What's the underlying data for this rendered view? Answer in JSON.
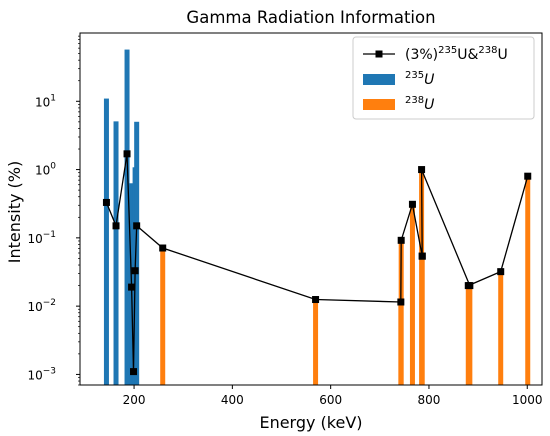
{
  "chart_data": {
    "type": "bar+line",
    "title": "Gamma Radiation Information",
    "xlabel": "Energy (keV)",
    "ylabel": "Intensity (%)",
    "xlim": [
      90,
      1030
    ],
    "ylim": [
      0.0007,
      100
    ],
    "yscale": "log",
    "grid": false,
    "legend_position": "top-right",
    "xticks": [
      200,
      400,
      600,
      800,
      1000
    ],
    "xtick_labels": [
      "200",
      "400",
      "600",
      "800",
      "1000"
    ],
    "yticks": [
      0.001,
      0.01,
      0.1,
      1,
      10
    ],
    "ytick_base": "10",
    "ytick_exponents": [
      "−3",
      "−2",
      "−1",
      "0",
      "1"
    ],
    "series": [
      {
        "name": "(3%)235U&238U",
        "legend_parts": {
          "prefix": "(3%)",
          "sup1": "235",
          "mid": "U&",
          "sup2": "238",
          "suffix": "U"
        },
        "kind": "line",
        "color": "#000000",
        "points": [
          [
            143.8,
            0.33
          ],
          [
            163.3,
            0.15
          ],
          [
            185.7,
            1.7
          ],
          [
            194.9,
            0.019
          ],
          [
            198.9,
            0.0011
          ],
          [
            202.1,
            0.033
          ],
          [
            205.3,
            0.15
          ],
          [
            258.3,
            0.071
          ],
          [
            569.3,
            0.0125
          ],
          [
            742.8,
            0.0115
          ],
          [
            743.5,
            0.092
          ],
          [
            766.4,
            0.31
          ],
          [
            786.3,
            0.054
          ],
          [
            786.3,
            0.054
          ],
          [
            785.0,
            1.0
          ],
          [
            883.2,
            0.02
          ],
          [
            880.0,
            0.02
          ],
          [
            946.0,
            0.032
          ],
          [
            1001.0,
            0.8
          ]
        ]
      },
      {
        "name": "235U",
        "legend_parts": {
          "sup": "235",
          "base": "U"
        },
        "kind": "bar",
        "color": "#1f77b4",
        "points": [
          [
            143.8,
            10.96
          ],
          [
            163.3,
            5.08
          ],
          [
            185.7,
            57.2
          ],
          [
            194.9,
            0.63
          ],
          [
            198.9,
            0.036
          ],
          [
            202.1,
            1.08
          ],
          [
            205.3,
            5.01
          ]
        ]
      },
      {
        "name": "238U",
        "legend_parts": {
          "sup": "238",
          "base": "U"
        },
        "kind": "bar",
        "color": "#ff7f0e",
        "points": [
          [
            258.3,
            0.071
          ],
          [
            569.3,
            0.0125
          ],
          [
            742.8,
            0.0115
          ],
          [
            743.5,
            0.092
          ],
          [
            766.4,
            0.31
          ],
          [
            786.3,
            0.054
          ],
          [
            785.0,
            1.0
          ],
          [
            880.0,
            0.02
          ],
          [
            883.2,
            0.02
          ],
          [
            946.0,
            0.032
          ],
          [
            1001.0,
            0.8
          ]
        ]
      }
    ]
  }
}
